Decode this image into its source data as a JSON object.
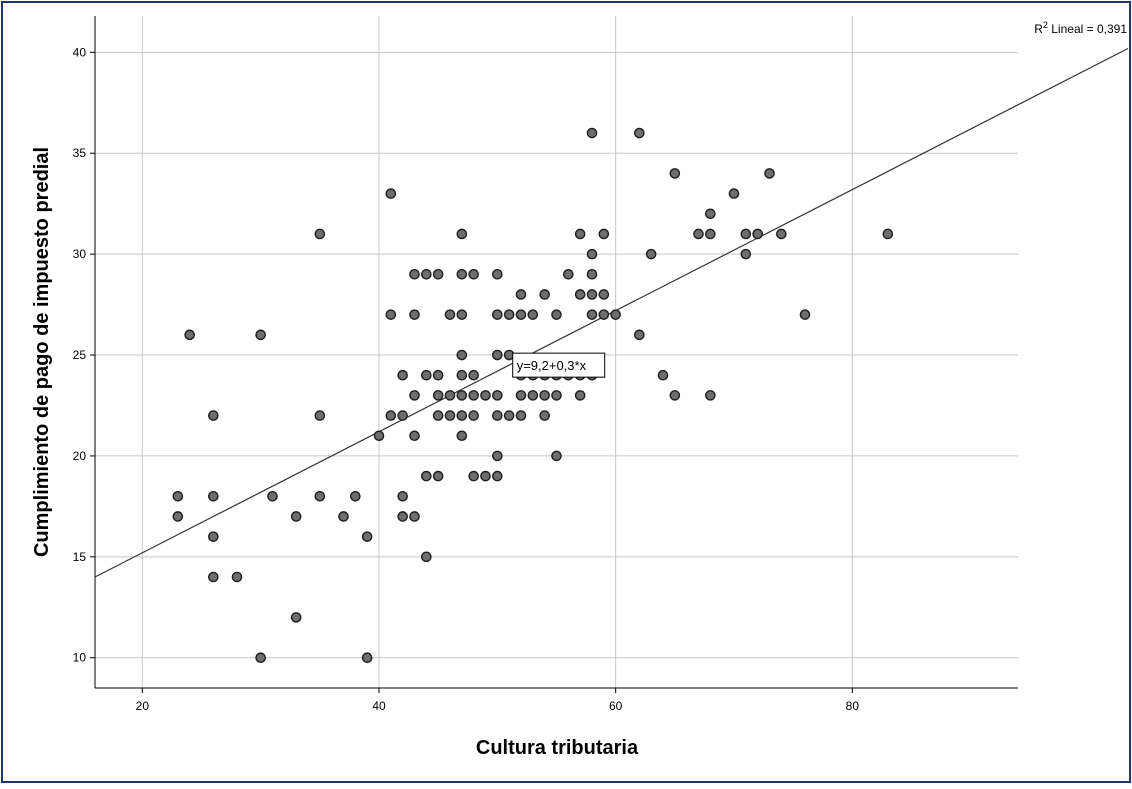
{
  "chart_data": {
    "type": "scatter",
    "title": "",
    "xlabel": "Cultura tributaria",
    "ylabel": "Cumplimiento de pago de impuesto predial",
    "xlim": [
      16,
      94
    ],
    "ylim": [
      8.5,
      41.8
    ],
    "x_ticks": [
      20,
      40,
      60,
      80
    ],
    "y_ticks": [
      10,
      15,
      20,
      25,
      30,
      35,
      40
    ],
    "grid": true,
    "fit_line": {
      "intercept": 9.2,
      "slope": 0.3,
      "label": "y=9,2+0,3*x"
    },
    "r2_prefix": "R",
    "r2_sup": "2",
    "r2_suffix": " Lineal = 0,391",
    "points": [
      [
        23,
        18
      ],
      [
        23,
        17
      ],
      [
        24,
        26
      ],
      [
        26,
        22
      ],
      [
        26,
        18
      ],
      [
        26,
        16
      ],
      [
        26,
        14
      ],
      [
        28,
        14
      ],
      [
        30,
        26
      ],
      [
        30,
        10
      ],
      [
        31,
        18
      ],
      [
        33,
        17
      ],
      [
        33,
        12
      ],
      [
        35,
        31
      ],
      [
        35,
        22
      ],
      [
        35,
        18
      ],
      [
        37,
        17
      ],
      [
        38,
        18
      ],
      [
        39,
        16
      ],
      [
        39,
        10
      ],
      [
        40,
        21
      ],
      [
        41,
        33
      ],
      [
        41,
        27
      ],
      [
        41,
        22
      ],
      [
        42,
        24
      ],
      [
        42,
        22
      ],
      [
        42,
        18
      ],
      [
        42,
        17
      ],
      [
        43,
        29
      ],
      [
        43,
        27
      ],
      [
        43,
        23
      ],
      [
        43,
        21
      ],
      [
        43,
        17
      ],
      [
        44,
        29
      ],
      [
        44,
        24
      ],
      [
        44,
        19
      ],
      [
        44,
        15
      ],
      [
        45,
        29
      ],
      [
        45,
        24
      ],
      [
        45,
        23
      ],
      [
        45,
        22
      ],
      [
        45,
        19
      ],
      [
        46,
        27
      ],
      [
        46,
        23
      ],
      [
        46,
        22
      ],
      [
        47,
        31
      ],
      [
        47,
        29
      ],
      [
        47,
        27
      ],
      [
        47,
        25
      ],
      [
        47,
        24
      ],
      [
        47,
        23
      ],
      [
        47,
        22
      ],
      [
        47,
        21
      ],
      [
        48,
        29
      ],
      [
        48,
        24
      ],
      [
        48,
        23
      ],
      [
        48,
        22
      ],
      [
        48,
        19
      ],
      [
        49,
        23
      ],
      [
        49,
        19
      ],
      [
        50,
        29
      ],
      [
        50,
        27
      ],
      [
        50,
        25
      ],
      [
        50,
        23
      ],
      [
        50,
        22
      ],
      [
        50,
        20
      ],
      [
        50,
        19
      ],
      [
        51,
        27
      ],
      [
        51,
        25
      ],
      [
        51,
        22
      ],
      [
        52,
        28
      ],
      [
        52,
        27
      ],
      [
        52,
        24
      ],
      [
        52,
        23
      ],
      [
        52,
        22
      ],
      [
        53,
        27
      ],
      [
        53,
        24
      ],
      [
        53,
        23
      ],
      [
        54,
        28
      ],
      [
        54,
        24
      ],
      [
        54,
        23
      ],
      [
        54,
        22
      ],
      [
        55,
        27
      ],
      [
        55,
        24
      ],
      [
        55,
        23
      ],
      [
        55,
        20
      ],
      [
        56,
        29
      ],
      [
        56,
        24
      ],
      [
        57,
        31
      ],
      [
        57,
        28
      ],
      [
        57,
        24
      ],
      [
        57,
        23
      ],
      [
        58,
        36
      ],
      [
        58,
        30
      ],
      [
        58,
        29
      ],
      [
        58,
        28
      ],
      [
        58,
        27
      ],
      [
        58,
        24
      ],
      [
        59,
        31
      ],
      [
        59,
        28
      ],
      [
        59,
        27
      ],
      [
        60,
        27
      ],
      [
        62,
        36
      ],
      [
        62,
        26
      ],
      [
        63,
        30
      ],
      [
        64,
        24
      ],
      [
        65,
        34
      ],
      [
        65,
        23
      ],
      [
        67,
        31
      ],
      [
        68,
        32
      ],
      [
        68,
        31
      ],
      [
        68,
        23
      ],
      [
        70,
        33
      ],
      [
        71,
        31
      ],
      [
        71,
        30
      ],
      [
        72,
        31
      ],
      [
        73,
        34
      ],
      [
        74,
        31
      ],
      [
        76,
        27
      ],
      [
        83,
        31
      ]
    ]
  }
}
